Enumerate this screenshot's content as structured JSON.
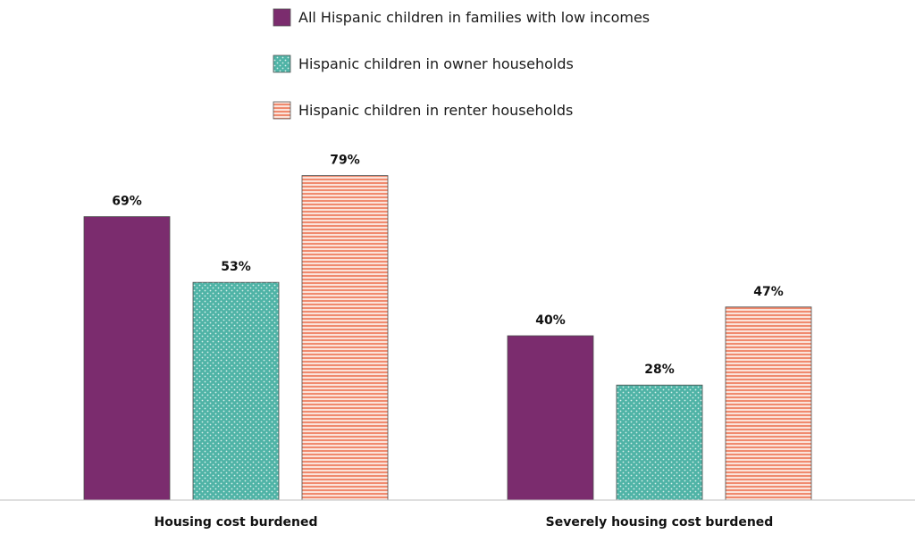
{
  "chart_data": {
    "type": "bar",
    "title": "",
    "xlabel": "",
    "ylabel": "",
    "ylim": [
      0,
      100
    ],
    "unit": "%",
    "grid": false,
    "legend_position": "top-center",
    "categories": [
      "Housing cost burdened",
      "Severely housing cost burdened"
    ],
    "series": [
      {
        "name": "All Hispanic children in families with low incomes",
        "values": [
          69,
          40
        ],
        "color": "#7b2c6e",
        "pattern": "solid"
      },
      {
        "name": "Hispanic children in owner households",
        "values": [
          53,
          28
        ],
        "color": "#4fb3a6",
        "pattern": "dots"
      },
      {
        "name": "Hispanic children in renter households",
        "values": [
          79,
          47
        ],
        "color": "#f4a08a",
        "pattern": "horizontal-stripes"
      }
    ],
    "value_labels": [
      [
        "69%",
        "40%"
      ],
      [
        "53%",
        "28%"
      ],
      [
        "79%",
        "47%"
      ]
    ]
  }
}
